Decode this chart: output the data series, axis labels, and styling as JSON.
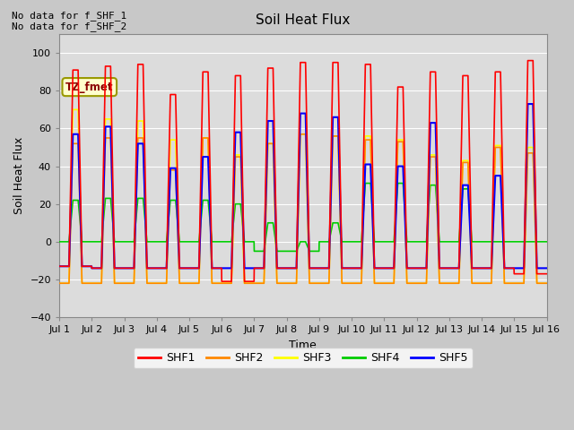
{
  "title": "Soil Heat Flux",
  "xlabel": "Time",
  "ylabel": "Soil Heat Flux",
  "ylim": [
    -40,
    110
  ],
  "yticks": [
    -40,
    -20,
    0,
    20,
    40,
    60,
    80,
    100
  ],
  "xlim": [
    0,
    15
  ],
  "xtick_labels": [
    "Jul 1",
    "Jul 2",
    "Jul 3",
    "Jul 4",
    "Jul 5",
    "Jul 6",
    "Jul 7",
    "Jul 8",
    "Jul 9",
    "Jul 10",
    "Jul 11",
    "Jul 12",
    "Jul 13",
    "Jul 14",
    "Jul 15",
    "Jul 16"
  ],
  "colors": {
    "SHF1": "#ff0000",
    "SHF2": "#ff8800",
    "SHF3": "#ffff00",
    "SHF4": "#00cc00",
    "SHF5": "#0000ff"
  },
  "annotation1": "No data for f_SHF_1",
  "annotation2": "No data for f_SHF_2",
  "box_label": "TZ_fmet",
  "n_days": 15,
  "shf1_peaks": [
    91,
    93,
    94,
    78,
    90,
    88,
    92,
    95,
    95,
    94,
    82,
    90,
    88,
    90,
    96
  ],
  "shf2_peaks": [
    52,
    55,
    55,
    38,
    55,
    45,
    52,
    57,
    56,
    54,
    53,
    45,
    42,
    50,
    47
  ],
  "shf3_peaks": [
    70,
    65,
    64,
    54,
    55,
    46,
    52,
    57,
    56,
    56,
    54,
    46,
    43,
    51,
    50
  ],
  "shf4_peaks": [
    22,
    23,
    23,
    22,
    22,
    20,
    10,
    0,
    10,
    31,
    31,
    30,
    28,
    0,
    0
  ],
  "shf5_peaks": [
    57,
    61,
    52,
    39,
    45,
    58,
    64,
    68,
    66,
    41,
    40,
    63,
    30,
    35,
    73
  ],
  "shf1_troughs": [
    -13,
    -14,
    -14,
    -14,
    -14,
    -21,
    -14,
    -14,
    -14,
    -14,
    -14,
    -14,
    -14,
    -14,
    -17
  ],
  "shf2_troughs": [
    -22,
    -22,
    -22,
    -22,
    -22,
    -22,
    -22,
    -22,
    -22,
    -22,
    -22,
    -22,
    -22,
    -22,
    -22
  ],
  "shf3_troughs": [
    -22,
    -22,
    -22,
    -22,
    -22,
    -22,
    -22,
    -22,
    -22,
    -22,
    -22,
    -22,
    -22,
    -22,
    -22
  ],
  "shf4_troughs": [
    0,
    0,
    0,
    0,
    0,
    0,
    -5,
    -5,
    0,
    0,
    0,
    0,
    0,
    0,
    0
  ],
  "shf5_troughs": [
    -13,
    -14,
    -14,
    -14,
    -14,
    -14,
    -14,
    -14,
    -14,
    -14,
    -14,
    -14,
    -14,
    -14,
    -14
  ],
  "rise_start": 0.3,
  "rise_end": 0.42,
  "fall_start": 0.58,
  "fall_end": 0.7,
  "pts_per_day": 200
}
